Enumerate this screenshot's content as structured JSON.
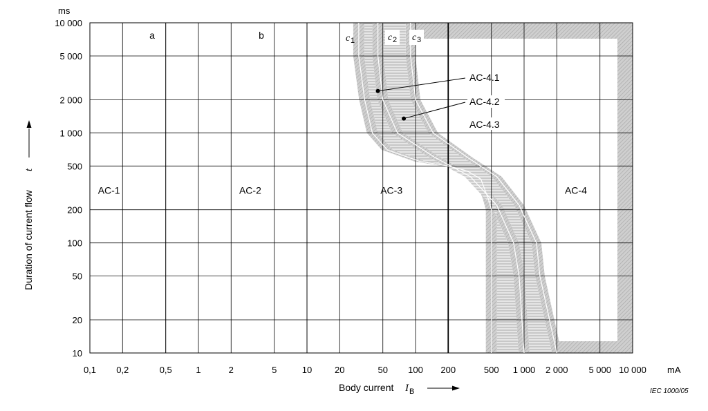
{
  "chart_data": {
    "type": "line",
    "title": "",
    "xlabel": "Body current",
    "xlabel_symbol": "I",
    "xlabel_subscript": "B",
    "x_unit": "mA",
    "ylabel": "Duration of current flow",
    "ylabel_symbol": "t",
    "y_unit": "ms",
    "x_scale": "log",
    "y_scale": "log",
    "xlim": [
      0.1,
      10000
    ],
    "ylim": [
      10,
      10000
    ],
    "grid": true,
    "x_ticks": [
      {
        "value": 0.1,
        "label": "0,1"
      },
      {
        "value": 0.2,
        "label": "0,2"
      },
      {
        "value": 0.5,
        "label": "0,5"
      },
      {
        "value": 1,
        "label": "1"
      },
      {
        "value": 2,
        "label": "2"
      },
      {
        "value": 5,
        "label": "5"
      },
      {
        "value": 10,
        "label": "10"
      },
      {
        "value": 20,
        "label": "20"
      },
      {
        "value": 50,
        "label": "50"
      },
      {
        "value": 100,
        "label": "100"
      },
      {
        "value": 200,
        "label": "200"
      },
      {
        "value": 500,
        "label": "500"
      },
      {
        "value": 1000,
        "label": "1 000"
      },
      {
        "value": 2000,
        "label": "2 000"
      },
      {
        "value": 5000,
        "label": "5 000"
      },
      {
        "value": 10000,
        "label": "10 000"
      }
    ],
    "y_ticks": [
      {
        "value": 10,
        "label": "10"
      },
      {
        "value": 20,
        "label": "20"
      },
      {
        "value": 50,
        "label": "50"
      },
      {
        "value": 100,
        "label": "100"
      },
      {
        "value": 200,
        "label": "200"
      },
      {
        "value": 500,
        "label": "500"
      },
      {
        "value": 1000,
        "label": "1 000"
      },
      {
        "value": 2000,
        "label": "2 000"
      },
      {
        "value": 5000,
        "label": "5 000"
      },
      {
        "value": 10000,
        "label": "10 000"
      }
    ],
    "series": [
      {
        "name": "a",
        "points": [
          [
            0.5,
            10
          ],
          [
            0.5,
            10000
          ]
        ]
      },
      {
        "name": "b",
        "points": [
          [
            10,
            10
          ],
          [
            10,
            10000
          ]
        ]
      },
      {
        "name": "c1",
        "points": [
          [
            30,
            10000
          ],
          [
            30,
            5000
          ],
          [
            34,
            2000
          ],
          [
            40,
            1000
          ],
          [
            55,
            700
          ],
          [
            110,
            550
          ],
          [
            200,
            500
          ],
          [
            300,
            450
          ],
          [
            400,
            380
          ],
          [
            470,
            250
          ],
          [
            500,
            200
          ],
          [
            500,
            10
          ]
        ]
      },
      {
        "name": "c2",
        "points": [
          [
            45,
            10000
          ],
          [
            45,
            5000
          ],
          [
            50,
            2000
          ],
          [
            68,
            1000
          ],
          [
            150,
            600
          ],
          [
            320,
            400
          ],
          [
            560,
            220
          ],
          [
            800,
            100
          ],
          [
            900,
            50
          ],
          [
            1000,
            10
          ]
        ]
      },
      {
        "name": "c3",
        "points": [
          [
            90,
            10000
          ],
          [
            90,
            5000
          ],
          [
            100,
            2000
          ],
          [
            145,
            1000
          ],
          [
            300,
            600
          ],
          [
            560,
            400
          ],
          [
            900,
            220
          ],
          [
            1300,
            100
          ],
          [
            1400,
            50
          ],
          [
            2000,
            10
          ]
        ]
      }
    ],
    "regions": [
      {
        "label": "AC-1",
        "x": 0.15,
        "y": 300
      },
      {
        "label": "AC-2",
        "x": 3,
        "y": 300
      },
      {
        "label": "AC-3",
        "x": 60,
        "y": 300
      },
      {
        "label": "AC-4",
        "x": 3000,
        "y": 300
      }
    ],
    "annotations": [
      {
        "label": "AC-4.1",
        "x": 45,
        "y": 2400
      },
      {
        "label": "AC-4.2",
        "x": 78,
        "y": 1350
      },
      {
        "label": "AC-4.3"
      }
    ],
    "credit": "IEC   1000/05"
  },
  "curve_labels": {
    "a": "a",
    "b": "b",
    "c1": "c",
    "c1_sub": "1",
    "c2": "c",
    "c2_sub": "2",
    "c3": "c",
    "c3_sub": "3"
  }
}
